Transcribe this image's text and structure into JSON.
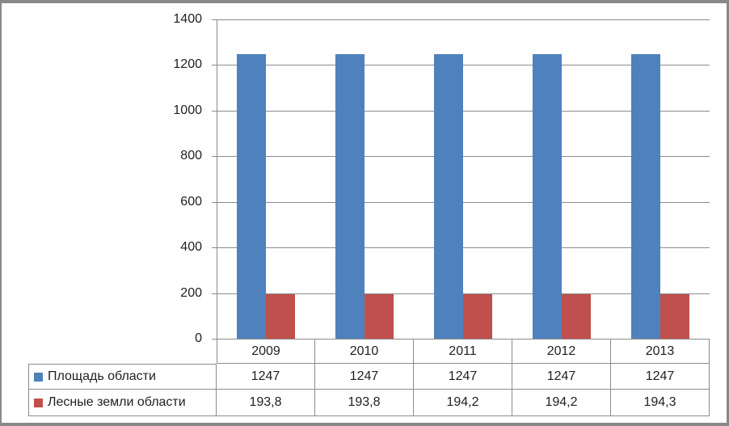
{
  "window": {
    "frame_color": "#898989",
    "background": "#FFFFFF"
  },
  "chart_data": {
    "type": "bar",
    "title": "",
    "xlabel": "",
    "ylabel": "",
    "categories": [
      "2009",
      "2010",
      "2011",
      "2012",
      "2013"
    ],
    "series": [
      {
        "name": "Площадь области",
        "color": "#4F81BD",
        "values": [
          1247,
          1247,
          1247,
          1247,
          1247
        ],
        "display_values": [
          "1247",
          "1247",
          "1247",
          "1247",
          "1247"
        ]
      },
      {
        "name": "Лесные земли области",
        "color": "#C0504D",
        "values": [
          193.8,
          193.8,
          194.2,
          194.2,
          194.3
        ],
        "display_values": [
          "193,8",
          "193,8",
          "194,2",
          "194,2",
          "194,3"
        ]
      }
    ],
    "ylim": [
      0,
      1400
    ],
    "ytick_step": 200,
    "yticks": [
      "0",
      "200",
      "400",
      "600",
      "800",
      "1000",
      "1200",
      "1400"
    ],
    "grid": true,
    "gridline_color": "#8C8C8C",
    "axis_color": "#8C8C8C",
    "text_color": "#1F1F1F",
    "legend_position": "data-table-left",
    "data_table_shown": true
  }
}
